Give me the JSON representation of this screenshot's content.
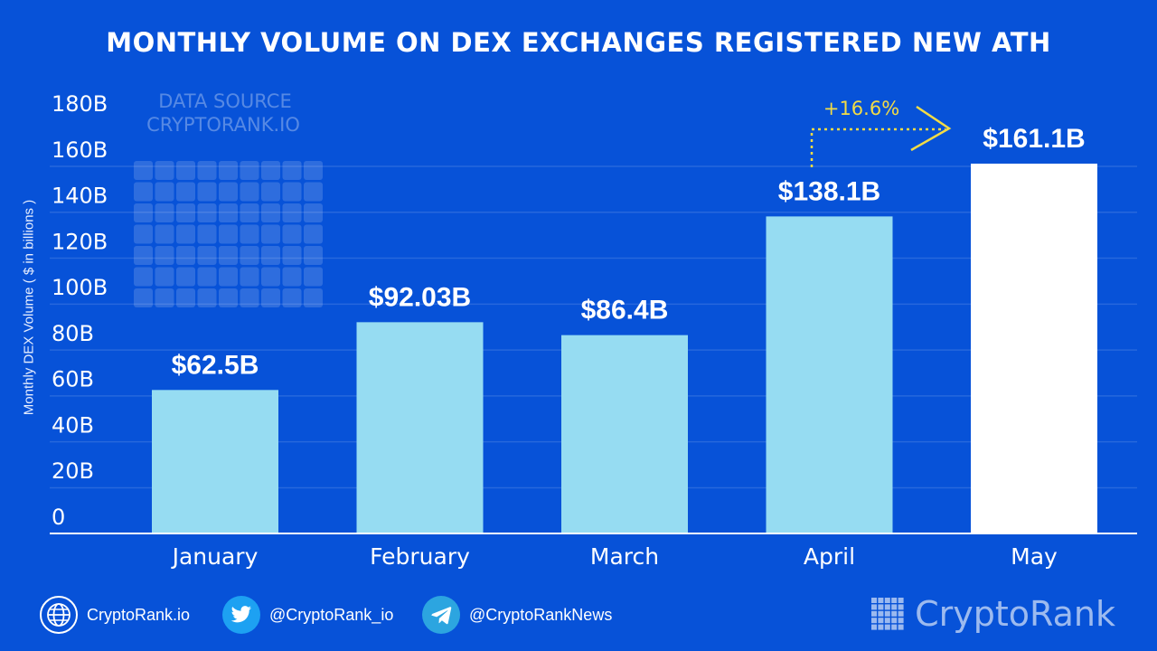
{
  "chart_data": {
    "type": "bar",
    "title": "MONTHLY VOLUME ON DEX EXCHANGES REGISTERED NEW ATH",
    "ylabel": "Monthly DEX Volume ( $ in billions )",
    "categories": [
      "January",
      "February",
      "March",
      "April",
      "May"
    ],
    "values": [
      62.5,
      92.03,
      86.4,
      138.1,
      161.1
    ],
    "value_labels": [
      "$62.5B",
      "$92.03B",
      "$86.4B",
      "$138.1B",
      "$161.1B"
    ],
    "yticks": [
      0,
      20,
      40,
      60,
      80,
      100,
      120,
      140,
      160,
      180
    ],
    "ytick_labels": [
      "0",
      "20B",
      "40B",
      "60B",
      "80B",
      "100B",
      "120B",
      "140B",
      "160B",
      "180B"
    ],
    "ylim": [
      0,
      180
    ],
    "grid": true,
    "bar_colors": [
      "#96dcf2",
      "#96dcf2",
      "#96dcf2",
      "#96dcf2",
      "#ffffff"
    ],
    "annotation": {
      "text": "+16.6%",
      "from": "April",
      "to": "May",
      "color": "#f3dc45"
    }
  },
  "watermark": {
    "line1": "DATA SOURCE",
    "line2": "CRYPTORANK.IO"
  },
  "footer": {
    "website": "CryptoRank.io",
    "twitter": "@CryptoRank_io",
    "telegram": "@CryptoRankNews",
    "brand": "CryptoRank",
    "icons": [
      "globe-icon",
      "twitter-bird-icon",
      "telegram-plane-icon",
      "cryptorank-logo-icon"
    ],
    "twitter_color": "#1da1f2",
    "telegram_color": "#2ca5e0"
  }
}
